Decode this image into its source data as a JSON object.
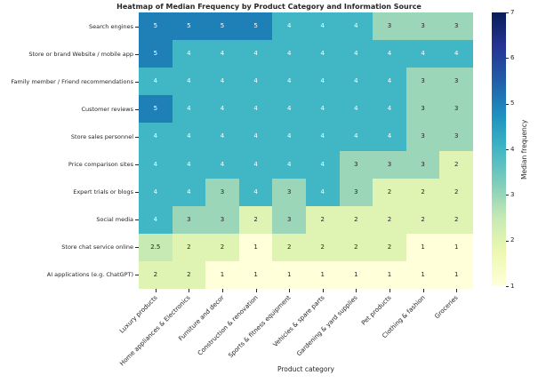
{
  "title": "Heatmap of Median Frequency by Product Category and Information Source",
  "chart_data": {
    "type": "heatmap",
    "title": "Heatmap of Median Frequency by Product Category and Information Source",
    "xlabel": "Product category",
    "colorbar_label": "Median frequency",
    "colorbar_ticks": [
      1,
      2,
      3,
      4,
      5,
      6,
      7
    ],
    "colorbar_range": [
      1,
      7
    ],
    "colormap": "YlGnBu",
    "legend_position": "right",
    "grid": false,
    "categories": [
      "Luxury products",
      "Home appliances & Electronics",
      "Furniture and decor",
      "Construction & renovation",
      "Sports & fitness equipment",
      "Vehicles & spare parts",
      "Gardening & yard supplies",
      "Pet products",
      "Clothing & fashion",
      "Groceries"
    ],
    "rows": [
      "Search engines",
      "Store or brand Website / mobile app",
      "Family member / Friend recommendations",
      "Customer reviews",
      "Store sales personnel",
      "Price comparison sites",
      "Expert trials or blogs",
      "Social media",
      "Store chat service online",
      "AI applications (e.g. ChatGPT)"
    ],
    "values": [
      [
        5,
        5,
        5,
        5,
        4,
        4,
        4,
        3,
        3,
        3
      ],
      [
        5,
        4,
        4,
        4,
        4,
        4,
        4,
        4,
        4,
        4
      ],
      [
        4,
        4,
        4,
        4,
        4,
        4,
        4,
        4,
        3,
        3
      ],
      [
        5,
        4,
        4,
        4,
        4,
        4,
        4,
        4,
        3,
        3
      ],
      [
        4,
        4,
        4,
        4,
        4,
        4,
        4,
        4,
        3,
        3
      ],
      [
        4,
        4,
        4,
        4,
        4,
        4,
        3,
        3,
        3,
        2
      ],
      [
        4,
        4,
        3,
        4,
        3,
        4,
        3,
        2,
        2,
        2
      ],
      [
        4,
        3,
        3,
        2,
        3,
        2,
        2,
        2,
        2,
        2
      ],
      [
        2.5,
        2,
        2,
        1,
        2,
        2,
        2,
        2,
        1,
        1
      ],
      [
        2,
        2,
        1,
        1,
        1,
        1,
        1,
        1,
        1,
        1
      ]
    ]
  },
  "colors": {
    "value_colors": {
      "1": "#ffffd9",
      "2": "#dff3b2",
      "2.5": "#c7e9b4",
      "3": "#9bd6b9",
      "4": "#41b6c4",
      "5": "#1f80b8"
    },
    "annot_light": "#ffffff",
    "annot_dark": "#262626",
    "colormap_stops": [
      "#ffffd9",
      "#edf8b1",
      "#c7e9b4",
      "#7fcdbb",
      "#41b6c4",
      "#1d91c0",
      "#225ea8",
      "#253494",
      "#081d58"
    ]
  }
}
